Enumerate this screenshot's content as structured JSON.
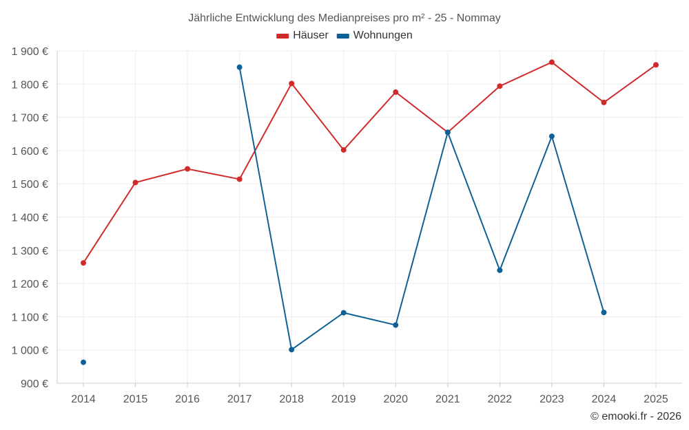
{
  "chart_data": {
    "type": "line",
    "title": "Jährliche Entwicklung des Medianpreises pro m² - 25 - Nommay",
    "categories": [
      "2014",
      "2015",
      "2016",
      "2017",
      "2018",
      "2019",
      "2020",
      "2021",
      "2022",
      "2023",
      "2024",
      "2025"
    ],
    "series": [
      {
        "name": "Häuser",
        "color": "#d12a2a",
        "values": [
          1262,
          1504,
          1545,
          1514,
          1802,
          1602,
          1776,
          1655,
          1794,
          1866,
          1745,
          1858
        ]
      },
      {
        "name": "Wohnungen",
        "color": "#0e6196",
        "values": [
          963,
          null,
          null,
          1851,
          1001,
          1112,
          1075,
          1655,
          1240,
          1643,
          1113,
          null
        ]
      }
    ],
    "ylim": [
      900,
      1900
    ],
    "yticks": [
      900,
      1000,
      1100,
      1200,
      1300,
      1400,
      1500,
      1600,
      1700,
      1800,
      1900
    ],
    "ytick_labels": [
      "900 €",
      "1 000 €",
      "1 100 €",
      "1 200 €",
      "1 300 €",
      "1 400 €",
      "1 500 €",
      "1 600 €",
      "1 700 €",
      "1 800 €",
      "1 900 €"
    ],
    "xlabel": "",
    "ylabel": "",
    "legend_position": "top-center",
    "grid": true
  },
  "credit": "© emooki.fr - 2026"
}
